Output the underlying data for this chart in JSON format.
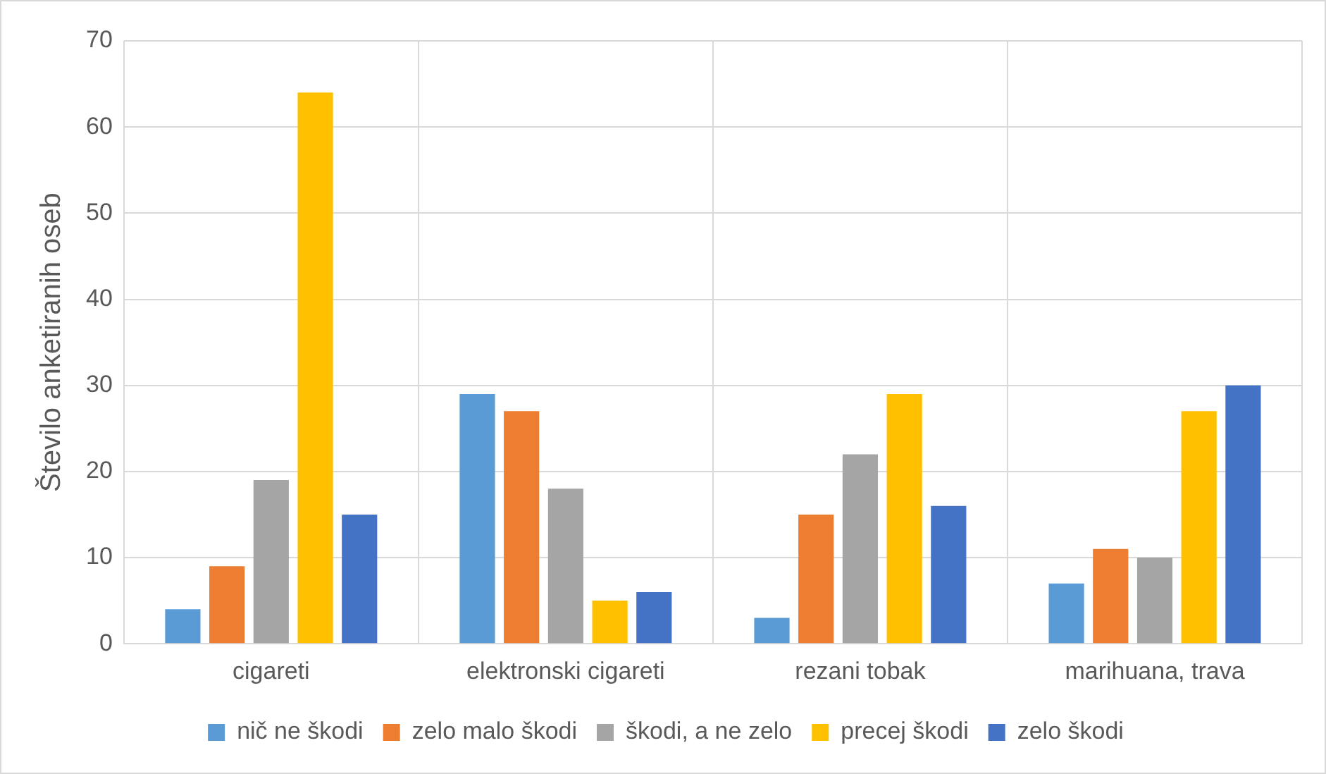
{
  "chart_data": {
    "type": "bar",
    "ylabel": "Število anketiranih oseb",
    "categories": [
      "cigareti",
      "elektronski cigareti",
      "rezani tobak",
      "marihuana, trava"
    ],
    "series": [
      {
        "name": "nič ne škodi",
        "color": "#5b9bd5",
        "values": [
          4,
          29,
          3,
          7
        ]
      },
      {
        "name": "zelo malo škodi",
        "color": "#ed7d31",
        "values": [
          9,
          27,
          15,
          11
        ]
      },
      {
        "name": "škodi, a ne zelo",
        "color": "#a5a5a5",
        "values": [
          19,
          18,
          22,
          10
        ]
      },
      {
        "name": "precej škodi",
        "color": "#ffc000",
        "values": [
          64,
          5,
          29,
          27
        ]
      },
      {
        "name": "zelo škodi",
        "color": "#4472c4",
        "values": [
          15,
          6,
          16,
          30
        ]
      }
    ],
    "ylim": [
      0,
      70
    ],
    "yticks": [
      0,
      10,
      20,
      30,
      40,
      50,
      60,
      70
    ],
    "grid": true,
    "legend": "bottom"
  }
}
